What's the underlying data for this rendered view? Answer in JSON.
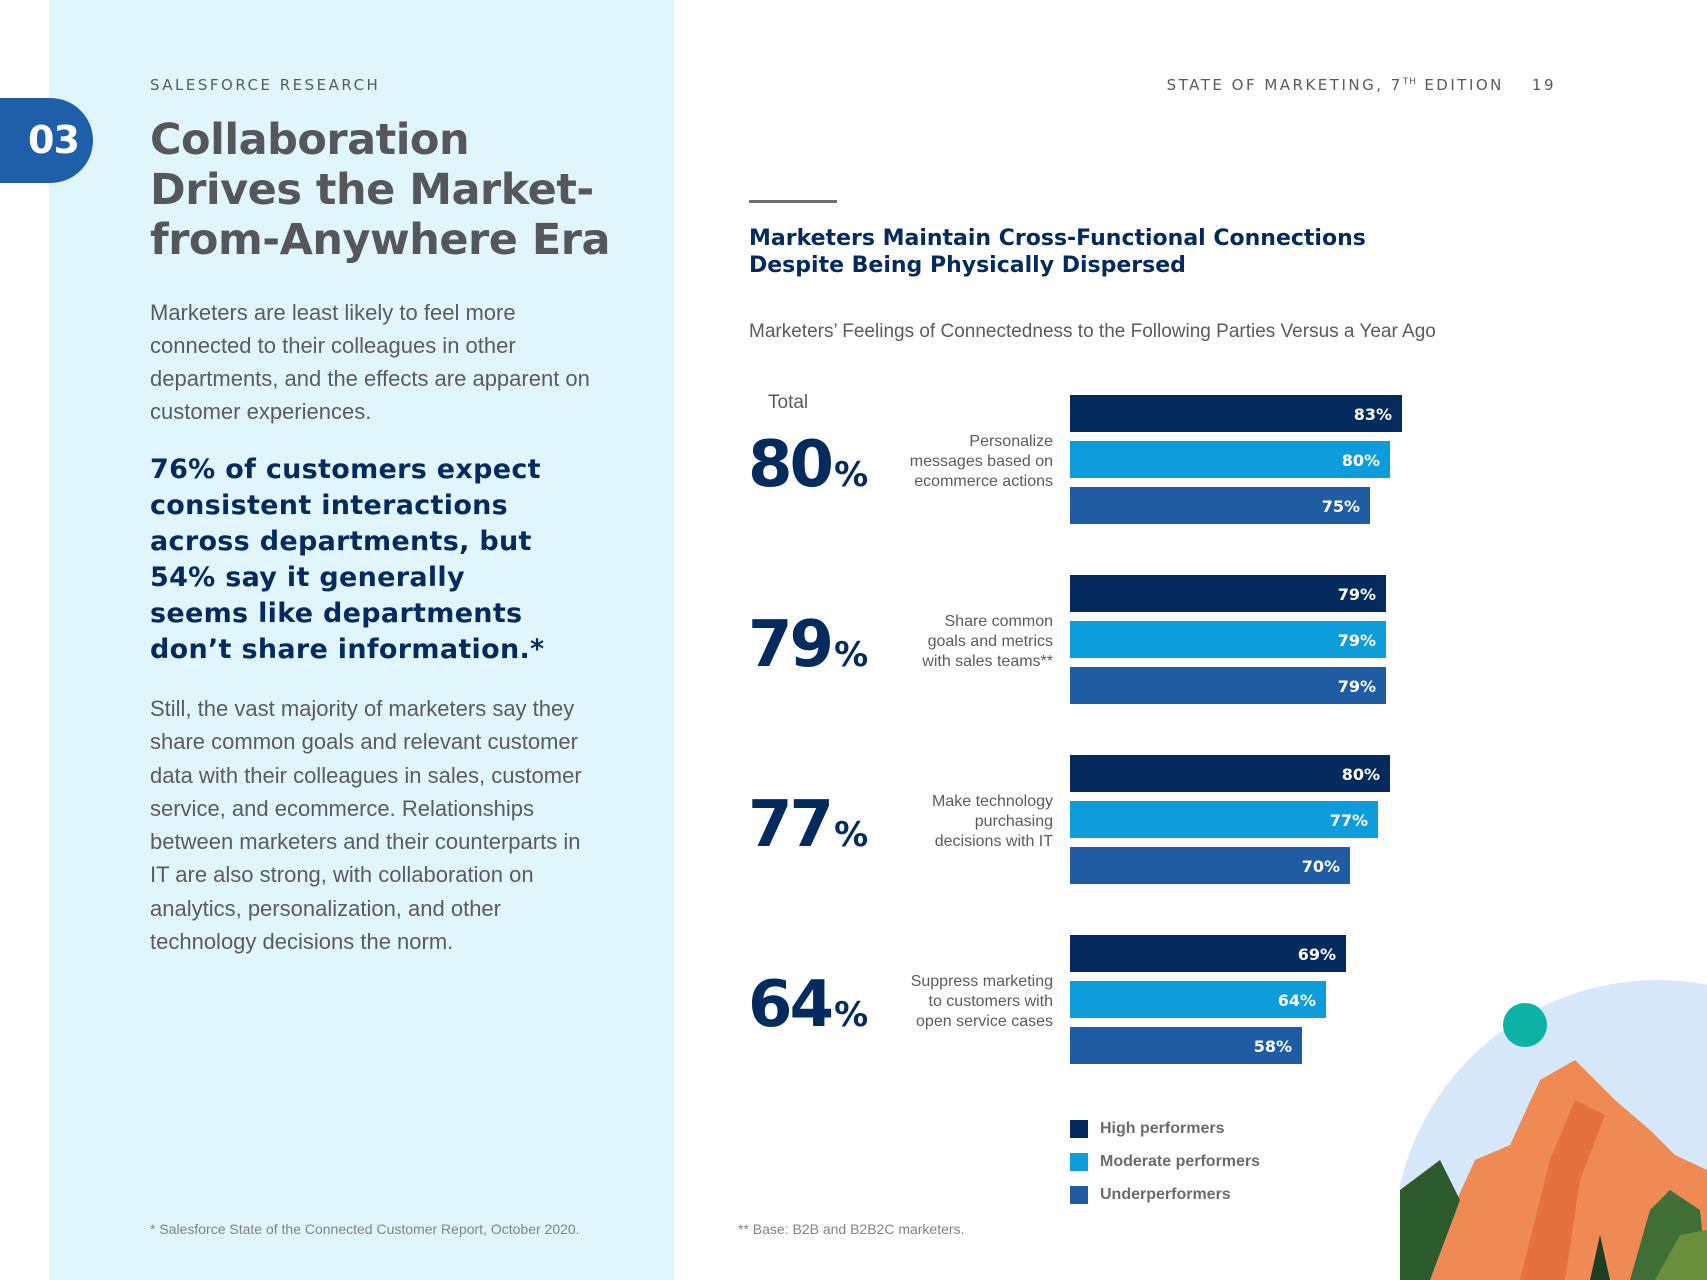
{
  "section": {
    "number": "03"
  },
  "header": {
    "kicker": "SALESFORCE RESEARCH",
    "report_title": "STATE OF MARKETING, 7",
    "report_title_sup": "TH",
    "report_title_suffix": " EDITION",
    "page_number": "19"
  },
  "left": {
    "title": "Collaboration Drives the Market-from-Anywhere Era",
    "intro": "Marketers are least likely to feel more connected to their colleagues in other departments, and the effects are apparent on customer experiences.",
    "callout": "76% of customers expect consistent interactions across departments, but 54% say it generally seems like departments don’t share information.*",
    "body": "Still, the vast majority of marketers say they share common goals and relevant customer data with their colleagues in sales, customer service, and ecommerce. Relationships between marketers and their counterparts in IT are also strong, with collaboration on analytics, personalization, and other technology decisions the norm.",
    "footnote": "* Salesforce State of the Connected Customer Report, October 2020."
  },
  "chart_data": {
    "type": "bar",
    "orientation": "horizontal",
    "title": "Marketers Maintain Cross-Functional Connections Despite Being Physically Dispersed",
    "subtitle": "Marketers’ Feelings of Connectedness to the Following Parties Versus a Year Ago",
    "total_label": "Total",
    "categories": [
      "Personalize messages based on ecommerce actions",
      "Share common goals and metrics with sales teams**",
      "Make technology purchasing decisions with IT",
      "Suppress marketing to customers with open service cases"
    ],
    "category_lines": [
      [
        "Personalize",
        "messages based on",
        "ecommerce actions"
      ],
      [
        "Share common",
        "goals and metrics",
        "with sales teams**"
      ],
      [
        "Make technology",
        "purchasing",
        "decisions with IT"
      ],
      [
        "Suppress marketing",
        "to customers with",
        "open service cases"
      ]
    ],
    "totals": [
      80,
      79,
      77,
      64
    ],
    "total_suffix": "%",
    "series": [
      {
        "name": "High performers",
        "color": "#042a5e",
        "values": [
          83,
          79,
          80,
          69
        ]
      },
      {
        "name": "Moderate performers",
        "color": "#0d9dda",
        "values": [
          80,
          79,
          77,
          64
        ]
      },
      {
        "name": "Underperformers",
        "color": "#1f5ca3",
        "values": [
          75,
          79,
          70,
          58
        ]
      }
    ],
    "value_suffix": "%",
    "xlim": [
      0,
      100
    ],
    "grid": false,
    "legend_position": "bottom"
  },
  "footnote_right": "** Base: B2B and B2B2C marketers."
}
